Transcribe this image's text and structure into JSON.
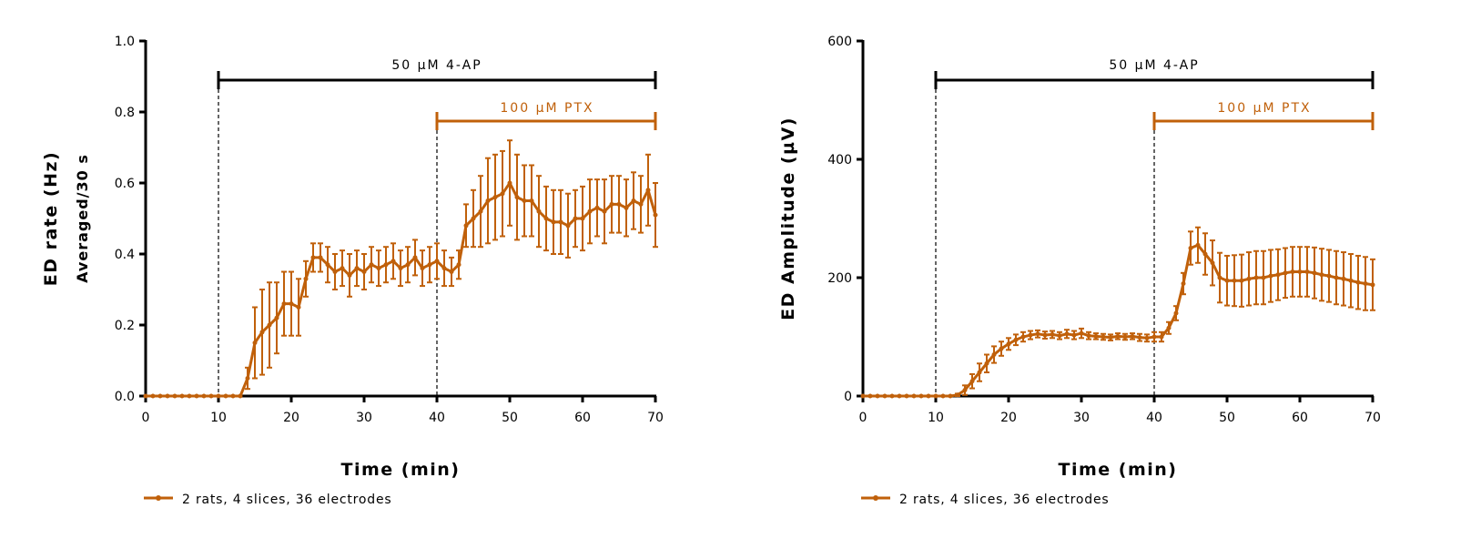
{
  "colors": {
    "series": "#C0600A",
    "drug_bar": "#000000",
    "ptx_bar": "#C0600A"
  },
  "chart_data": [
    {
      "type": "line",
      "title": "",
      "xlabel": "Time (min)",
      "ylabel": "ED rate (Hz)",
      "ylabel2": "Averaged/30 s",
      "xlim": [
        0,
        70
      ],
      "ylim": [
        0,
        1.0
      ],
      "xticks": [
        0,
        10,
        20,
        30,
        40,
        50,
        60,
        70
      ],
      "xtick_labels": [
        "0",
        "10",
        "20",
        "30",
        "40",
        "50",
        "60",
        "70"
      ],
      "yticks": [
        0,
        0.2,
        0.4,
        0.6,
        0.8,
        1.0
      ],
      "ytick_labels": [
        "0.0",
        "0.2",
        "0.4",
        "0.6",
        "0.8",
        "1.0"
      ],
      "annotations": [
        {
          "text": "50 µM 4-AP",
          "x_start": 10,
          "x_end": 70,
          "y": 0.89,
          "color": "#000000",
          "dashed_line_at": 10
        },
        {
          "text": "100 µM PTX",
          "x_start": 40,
          "x_end": 70,
          "y": 0.77,
          "color": "#C0600A",
          "dashed_line_at": 40
        }
      ],
      "legend": {
        "label": "2 rats, 4 slices, 36 electrodes",
        "placement": "bottom-left"
      },
      "series": [
        {
          "name": "2 rats, 4 slices, 36 electrodes",
          "x": [
            0,
            1,
            2,
            3,
            4,
            5,
            6,
            7,
            8,
            9,
            10,
            11,
            12,
            13,
            14,
            15,
            16,
            17,
            18,
            19,
            20,
            21,
            22,
            23,
            24,
            25,
            26,
            27,
            28,
            29,
            30,
            31,
            32,
            33,
            34,
            35,
            36,
            37,
            38,
            39,
            40,
            41,
            42,
            43,
            44,
            45,
            46,
            47,
            48,
            49,
            50,
            51,
            52,
            53,
            54,
            55,
            56,
            57,
            58,
            59,
            60,
            61,
            62,
            63,
            64,
            65,
            66,
            67,
            68,
            69,
            70
          ],
          "y": [
            0,
            0,
            0,
            0,
            0,
            0,
            0,
            0,
            0,
            0,
            0,
            0,
            0,
            0,
            0.05,
            0.15,
            0.18,
            0.2,
            0.22,
            0.26,
            0.26,
            0.25,
            0.33,
            0.39,
            0.39,
            0.37,
            0.35,
            0.36,
            0.34,
            0.36,
            0.35,
            0.37,
            0.36,
            0.37,
            0.38,
            0.36,
            0.37,
            0.39,
            0.36,
            0.37,
            0.38,
            0.36,
            0.35,
            0.37,
            0.48,
            0.5,
            0.52,
            0.55,
            0.56,
            0.57,
            0.6,
            0.56,
            0.55,
            0.55,
            0.52,
            0.5,
            0.49,
            0.49,
            0.48,
            0.5,
            0.5,
            0.52,
            0.53,
            0.52,
            0.54,
            0.54,
            0.53,
            0.55,
            0.54,
            0.58,
            0.51
          ],
          "err": [
            0,
            0,
            0,
            0,
            0,
            0,
            0,
            0,
            0,
            0,
            0,
            0,
            0,
            0,
            0.03,
            0.1,
            0.12,
            0.12,
            0.1,
            0.09,
            0.09,
            0.08,
            0.05,
            0.04,
            0.04,
            0.05,
            0.05,
            0.05,
            0.06,
            0.05,
            0.05,
            0.05,
            0.05,
            0.05,
            0.05,
            0.05,
            0.05,
            0.05,
            0.05,
            0.05,
            0.05,
            0.05,
            0.04,
            0.04,
            0.06,
            0.08,
            0.1,
            0.12,
            0.12,
            0.12,
            0.12,
            0.12,
            0.1,
            0.1,
            0.1,
            0.09,
            0.09,
            0.09,
            0.09,
            0.08,
            0.09,
            0.09,
            0.08,
            0.09,
            0.08,
            0.08,
            0.08,
            0.08,
            0.08,
            0.1,
            0.09
          ]
        }
      ]
    },
    {
      "type": "line",
      "title": "",
      "xlabel": "Time (min)",
      "ylabel": "ED Amplitude (µV)",
      "xlim": [
        0,
        70
      ],
      "ylim": [
        0,
        600
      ],
      "xticks": [
        0,
        10,
        20,
        30,
        40,
        50,
        60,
        70
      ],
      "xtick_labels": [
        "0",
        "10",
        "20",
        "30",
        "40",
        "50",
        "60",
        "70"
      ],
      "yticks": [
        0,
        200,
        400,
        600
      ],
      "ytick_labels": [
        "0",
        "200",
        "400",
        "600"
      ],
      "annotations": [
        {
          "text": "50 µM 4-AP",
          "x_start": 10,
          "x_end": 70,
          "y": 534,
          "color": "#000000",
          "dashed_line_at": 10
        },
        {
          "text": "100 µM PTX",
          "x_start": 40,
          "x_end": 70,
          "y": 463,
          "color": "#C0600A",
          "dashed_line_at": 40
        }
      ],
      "legend": {
        "label": "2 rats, 4 slices, 36 electrodes",
        "placement": "bottom-left"
      },
      "series": [
        {
          "name": "2 rats, 4 slices, 36 electrodes",
          "x": [
            0,
            1,
            2,
            3,
            4,
            5,
            6,
            7,
            8,
            9,
            10,
            11,
            12,
            13,
            14,
            15,
            16,
            17,
            18,
            19,
            20,
            21,
            22,
            23,
            24,
            25,
            26,
            27,
            28,
            29,
            30,
            31,
            32,
            33,
            34,
            35,
            36,
            37,
            38,
            39,
            40,
            41,
            42,
            43,
            44,
            45,
            46,
            47,
            48,
            49,
            50,
            51,
            52,
            53,
            54,
            55,
            56,
            57,
            58,
            59,
            60,
            61,
            62,
            63,
            64,
            65,
            66,
            67,
            68,
            69,
            70
          ],
          "y": [
            0,
            0,
            0,
            0,
            0,
            0,
            0,
            0,
            0,
            0,
            0,
            0,
            0,
            2,
            10,
            25,
            40,
            55,
            70,
            80,
            88,
            95,
            100,
            103,
            105,
            103,
            104,
            102,
            105,
            103,
            106,
            102,
            101,
            100,
            99,
            101,
            100,
            101,
            99,
            98,
            100,
            100,
            115,
            140,
            190,
            250,
            255,
            240,
            225,
            200,
            195,
            195,
            195,
            198,
            200,
            200,
            203,
            205,
            208,
            210,
            210,
            210,
            208,
            205,
            203,
            200,
            198,
            195,
            192,
            190,
            188
          ],
          "err": [
            0,
            0,
            0,
            0,
            0,
            0,
            0,
            0,
            0,
            0,
            0,
            0,
            0,
            2,
            8,
            12,
            15,
            15,
            14,
            12,
            10,
            9,
            8,
            7,
            6,
            6,
            6,
            6,
            7,
            7,
            8,
            6,
            5,
            5,
            5,
            5,
            5,
            5,
            6,
            6,
            8,
            8,
            10,
            12,
            18,
            28,
            30,
            35,
            38,
            42,
            42,
            43,
            44,
            45,
            45,
            45,
            44,
            43,
            42,
            42,
            42,
            42,
            43,
            44,
            44,
            45,
            45,
            45,
            45,
            45,
            43
          ]
        }
      ]
    }
  ]
}
